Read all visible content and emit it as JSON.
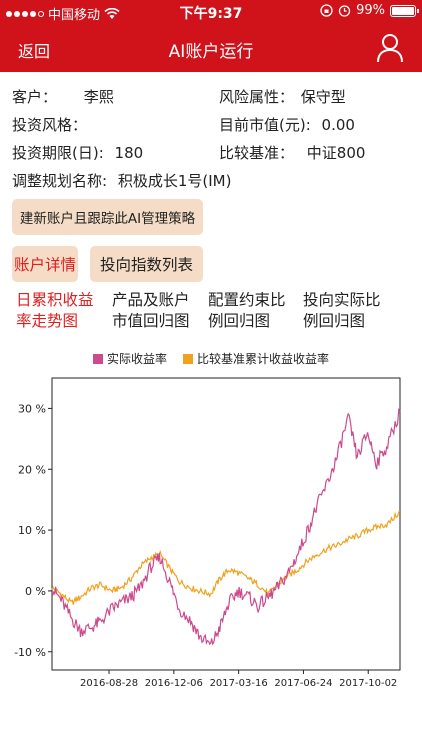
{
  "status": {
    "carrier": "中国移动",
    "time": "下午9:37",
    "battery": "99%"
  },
  "nav": {
    "back": "返回",
    "title": "AI账户运行"
  },
  "info": {
    "customer_label": "客户：",
    "customer_value": "李熙",
    "risk_label": "风险属性：",
    "risk_value": "保守型",
    "style_label": "投资风格：",
    "mv_label": "目前市值(元):",
    "mv_value": "0.00",
    "period_label": "投资期限(日):",
    "period_value": "180",
    "bench_label": "比较基准：",
    "bench_value": "中证800",
    "plan_label": "调整规划名称:",
    "plan_value": "积极成长1号(IM)"
  },
  "buttons": {
    "create": "建新账户且跟踪此AI管理策略",
    "detail": "账户详情",
    "index_list": "投向指数列表"
  },
  "tabs": [
    {
      "line1": "日累积收益",
      "line2": "率走势图"
    },
    {
      "line1": "产品及账户",
      "line2": "市值回归图"
    },
    {
      "line1": "配置约束比",
      "line2": "例回归图"
    },
    {
      "line1": "投向实际比",
      "line2": "例回归图"
    }
  ],
  "colors": {
    "red": "#d0121b",
    "actual": "#cc4b8d",
    "benchmark": "#f0a21e"
  },
  "chart_data": {
    "type": "line",
    "series": [
      {
        "name": "实际收益率",
        "color": "#cc4b8d",
        "points": [
          [
            "2016-06-01",
            0.5
          ],
          [
            "2016-06-15",
            -1.5
          ],
          [
            "2016-07-01",
            -4.5
          ],
          [
            "2016-07-15",
            -6.5
          ],
          [
            "2016-08-01",
            -6.0
          ],
          [
            "2016-08-15",
            -5.0
          ],
          [
            "2016-09-01",
            -3.0
          ],
          [
            "2016-09-15",
            -2.0
          ],
          [
            "2016-10-01",
            -1.0
          ],
          [
            "2016-10-15",
            0.5
          ],
          [
            "2016-11-01",
            4.0
          ],
          [
            "2016-11-15",
            5.5
          ],
          [
            "2016-12-01",
            1.0
          ],
          [
            "2016-12-15",
            -3.0
          ],
          [
            "2017-01-01",
            -5.0
          ],
          [
            "2017-01-15",
            -7.5
          ],
          [
            "2017-02-01",
            -9.0
          ],
          [
            "2017-02-15",
            -6.0
          ],
          [
            "2017-03-01",
            -2.0
          ],
          [
            "2017-03-15",
            0.0
          ],
          [
            "2017-04-01",
            -1.0
          ],
          [
            "2017-04-15",
            -2.5
          ],
          [
            "2017-05-01",
            -1.0
          ],
          [
            "2017-05-15",
            0.5
          ],
          [
            "2017-06-01",
            3.0
          ],
          [
            "2017-06-15",
            6.0
          ],
          [
            "2017-07-01",
            10.0
          ],
          [
            "2017-07-15",
            14.0
          ],
          [
            "2017-08-01",
            18.0
          ],
          [
            "2017-08-15",
            22.0
          ],
          [
            "2017-09-01",
            28.5
          ],
          [
            "2017-09-15",
            22.0
          ],
          [
            "2017-10-01",
            26.0
          ],
          [
            "2017-10-15",
            21.0
          ],
          [
            "2017-11-01",
            24.0
          ],
          [
            "2017-11-20",
            29.5
          ]
        ]
      },
      {
        "name": "比较基准累计收益收益率",
        "color": "#f0a21e",
        "points": [
          [
            "2016-06-01",
            0.5
          ],
          [
            "2016-06-15",
            -0.5
          ],
          [
            "2016-07-01",
            -2.0
          ],
          [
            "2016-07-15",
            -1.0
          ],
          [
            "2016-08-01",
            0.5
          ],
          [
            "2016-08-15",
            1.0
          ],
          [
            "2016-09-01",
            0.0
          ],
          [
            "2016-09-15",
            0.5
          ],
          [
            "2016-10-01",
            2.0
          ],
          [
            "2016-10-15",
            4.0
          ],
          [
            "2016-11-01",
            5.5
          ],
          [
            "2016-11-15",
            6.0
          ],
          [
            "2016-12-01",
            3.5
          ],
          [
            "2016-12-15",
            1.5
          ],
          [
            "2017-01-01",
            0.5
          ],
          [
            "2017-01-15",
            0.0
          ],
          [
            "2017-02-01",
            -0.5
          ],
          [
            "2017-02-15",
            2.0
          ],
          [
            "2017-03-01",
            3.5
          ],
          [
            "2017-03-15",
            3.0
          ],
          [
            "2017-04-01",
            2.0
          ],
          [
            "2017-04-15",
            1.0
          ],
          [
            "2017-05-01",
            -0.5
          ],
          [
            "2017-05-15",
            1.0
          ],
          [
            "2017-06-01",
            2.5
          ],
          [
            "2017-06-15",
            3.5
          ],
          [
            "2017-07-01",
            5.0
          ],
          [
            "2017-07-15",
            6.0
          ],
          [
            "2017-08-01",
            7.0
          ],
          [
            "2017-08-15",
            7.5
          ],
          [
            "2017-09-01",
            8.5
          ],
          [
            "2017-09-15",
            9.0
          ],
          [
            "2017-10-01",
            10.0
          ],
          [
            "2017-10-15",
            10.5
          ],
          [
            "2017-11-01",
            11.0
          ],
          [
            "2017-11-20",
            13.0
          ]
        ]
      }
    ],
    "ylim": [
      -13,
      35
    ],
    "yticks": [
      -10,
      0,
      10,
      20,
      30
    ],
    "ytick_labels": [
      "-10 %",
      "0 %",
      "10 %",
      "20 %",
      "30 %"
    ],
    "xlim": [
      "2016-06-01",
      "2017-11-20"
    ],
    "xticks": [
      "2016-08-28",
      "2016-12-06",
      "2017-03-16",
      "2017-06-24",
      "2017-10-02"
    ],
    "legend_position": "top",
    "grid": false
  }
}
